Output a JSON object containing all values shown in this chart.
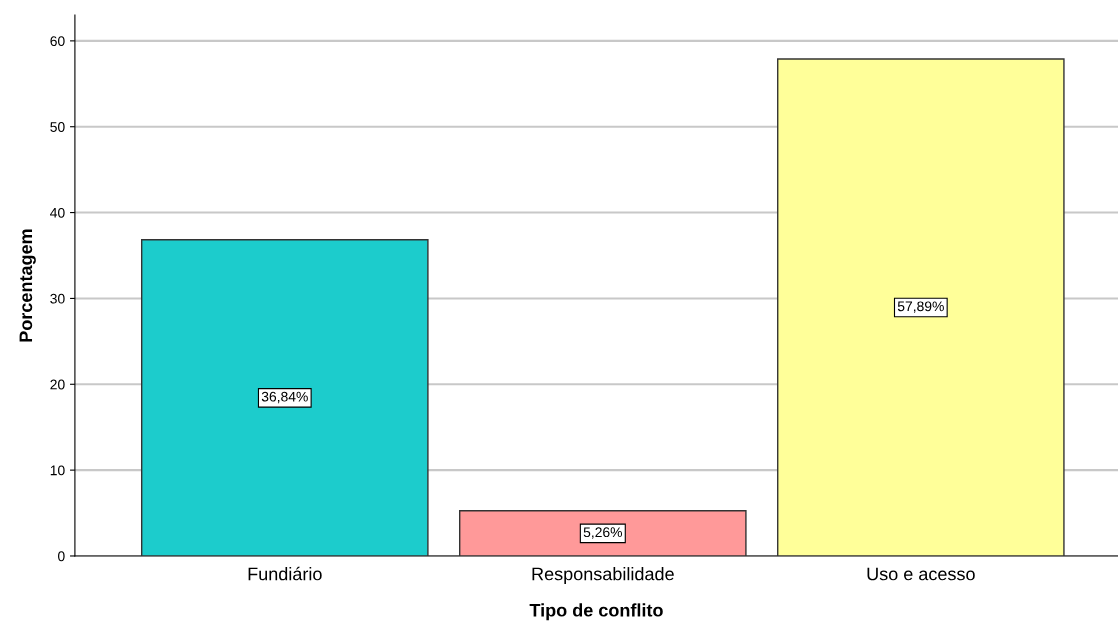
{
  "chart_data": {
    "type": "bar",
    "xlabel": "Tipo de conflito",
    "ylabel": "Porcentagem",
    "categories": [
      "Fundiário",
      "Responsabilidade",
      "Uso e acesso"
    ],
    "values": [
      36.84,
      5.26,
      57.89
    ],
    "colors": [
      "#1ccccc",
      "#ff9999",
      "#ffff99"
    ],
    "value_labels": [
      "36,84%",
      "5,26%",
      "57,89%"
    ],
    "ylim": [
      0,
      63
    ],
    "yticks": [
      0,
      10,
      20,
      30,
      40,
      50,
      60
    ],
    "grid": "y",
    "legend": false
  }
}
